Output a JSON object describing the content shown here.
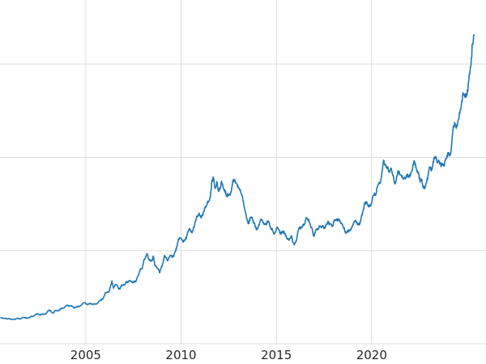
{
  "page": {
    "background_color": "#ffffff",
    "grid_color": "#dcdcdc",
    "tick_label_color": "#262626",
    "tick_label_font_px": 15
  },
  "chart_data": {
    "type": "line",
    "title": "",
    "xlabel": "",
    "ylabel": "",
    "legend": "none",
    "grid": true,
    "line_color": "#1f77b4",
    "line_width": 1.6,
    "xlim": [
      2000.5,
      2026.0
    ],
    "ylim": [
      0,
      3600
    ],
    "x_tick_positions": [
      2005,
      2010,
      2015,
      2020
    ],
    "x_tick_labels": [
      "2005",
      "2010",
      "2015",
      "2020"
    ],
    "y_gridline_values": [
      0,
      1000,
      2000,
      3000
    ],
    "y_tick_labels_visible": false,
    "cadence": "monthly",
    "x_start": 2000.542,
    "x_step_years": 0.083333,
    "values": [
      281,
      274,
      273,
      270,
      266,
      272,
      266,
      262,
      263,
      261,
      272,
      270,
      268,
      272,
      284,
      283,
      276,
      276,
      281,
      295,
      294,
      302,
      314,
      321,
      313,
      310,
      319,
      316,
      319,
      333,
      356,
      359,
      340,
      328,
      355,
      356,
      351,
      359,
      379,
      379,
      389,
      407,
      414,
      405,
      406,
      403,
      383,
      392,
      398,
      400,
      405,
      420,
      439,
      442,
      424,
      423,
      434,
      429,
      421,
      430,
      424,
      437,
      456,
      470,
      476,
      510,
      550,
      555,
      557,
      611,
      675,
      596,
      634,
      632,
      598,
      586,
      627,
      629,
      631,
      665,
      655,
      679,
      667,
      655,
      665,
      665,
      713,
      754,
      806,
      803,
      890,
      922,
      968,
      910,
      889,
      889,
      940,
      839,
      829,
      807,
      761,
      816,
      858,
      943,
      924,
      890,
      928,
      946,
      934,
      949,
      996,
      1043,
      1127,
      1135,
      1118,
      1095,
      1113,
      1149,
      1205,
      1233,
      1193,
      1216,
      1271,
      1342,
      1370,
      1391,
      1356,
      1373,
      1424,
      1474,
      1511,
      1529,
      1573,
      1756,
      1772,
      1666,
      1739,
      1640,
      1656,
      1743,
      1674,
      1650,
      1588,
      1597,
      1594,
      1626,
      1744,
      1747,
      1722,
      1685,
      1671,
      1627,
      1593,
      1485,
      1414,
      1343,
      1287,
      1347,
      1348,
      1316,
      1276,
      1222,
      1244,
      1301,
      1336,
      1299,
      1288,
      1279,
      1311,
      1296,
      1237,
      1223,
      1176,
      1201,
      1251,
      1227,
      1179,
      1198,
      1199,
      1182,
      1130,
      1118,
      1125,
      1159,
      1086,
      1068,
      1098,
      1200,
      1246,
      1242,
      1260,
      1276,
      1337,
      1340,
      1327,
      1267,
      1238,
      1152,
      1192,
      1234,
      1231,
      1266,
      1246,
      1260,
      1237,
      1283,
      1314,
      1280,
      1282,
      1264,
      1331,
      1330,
      1325,
      1335,
      1303,
      1281,
      1238,
      1201,
      1198,
      1215,
      1221,
      1250,
      1292,
      1320,
      1301,
      1286,
      1284,
      1359,
      1413,
      1500,
      1511,
      1495,
      1471,
      1480,
      1561,
      1597,
      1592,
      1683,
      1716,
      1732,
      1843,
      1969,
      1922,
      1900,
      1866,
      1858,
      1867,
      1808,
      1718,
      1762,
      1853,
      1835,
      1807,
      1784,
      1777,
      1777,
      1820,
      1787,
      1816,
      1856,
      1948,
      1934,
      1848,
      1836,
      1736,
      1765,
      1681,
      1664,
      1726,
      1797,
      1898,
      1855,
      1913,
      1999,
      1992,
      1943,
      1951,
      1918,
      1916,
      1905,
      1984,
      2026,
      2034,
      2025,
      2160,
      2336,
      2351,
      2327,
      2398,
      2470,
      2568,
      2690,
      2657,
      2643,
      2708,
      2897,
      2983,
      3218,
      3310
    ]
  }
}
